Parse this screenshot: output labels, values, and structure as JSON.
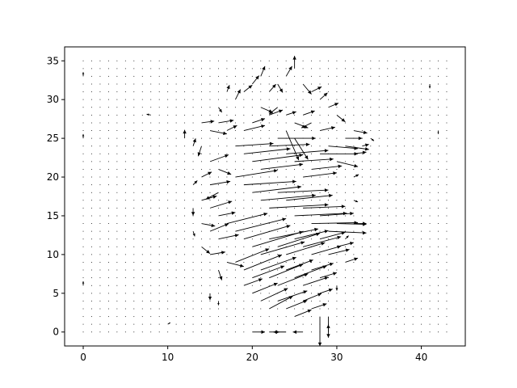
{
  "chart_data": {
    "type": "quiver",
    "title": "",
    "xlabel": "",
    "ylabel": "",
    "xlim": [
      -2.2,
      45.2
    ],
    "ylim": [
      -1.8,
      36.8
    ],
    "grid": false,
    "xticks": [
      0,
      10,
      20,
      30,
      40
    ],
    "yticks": [
      0,
      5,
      10,
      15,
      20,
      25,
      30,
      35
    ],
    "xtick_labels": [
      "0",
      "10",
      "20",
      "30",
      "40"
    ],
    "ytick_labels": [
      "0",
      "5",
      "10",
      "15",
      "20",
      "25",
      "30",
      "35"
    ],
    "grid_x_range": [
      0,
      43
    ],
    "grid_y_range": [
      0,
      35
    ],
    "color": "#000000",
    "vectors": [
      {
        "x": 0,
        "y": 33,
        "u": 0,
        "v": 0.5
      },
      {
        "x": 0,
        "y": 25,
        "u": 0,
        "v": 0.5
      },
      {
        "x": 0,
        "y": 6,
        "u": 0,
        "v": 0.5
      },
      {
        "x": 8,
        "y": 28,
        "u": -0.5,
        "v": 0.1
      },
      {
        "x": 14,
        "y": 27,
        "u": 1.5,
        "v": 0.2
      },
      {
        "x": 15,
        "y": 26,
        "u": 2.0,
        "v": -0.4
      },
      {
        "x": 16,
        "y": 27,
        "u": 1.8,
        "v": 0.3
      },
      {
        "x": 14,
        "y": 24,
        "u": -0.4,
        "v": -1.2
      },
      {
        "x": 15,
        "y": 22,
        "u": 2.2,
        "v": 0.8
      },
      {
        "x": 16,
        "y": 21,
        "u": 1.5,
        "v": -0.6
      },
      {
        "x": 14,
        "y": 20,
        "u": 1.2,
        "v": 0.6
      },
      {
        "x": 15,
        "y": 19,
        "u": 2.4,
        "v": 0.4
      },
      {
        "x": 16,
        "y": 18,
        "u": -1.5,
        "v": -0.8
      },
      {
        "x": 14,
        "y": 17,
        "u": 1.8,
        "v": 0.5
      },
      {
        "x": 15,
        "y": 16,
        "u": 2.6,
        "v": 0.8
      },
      {
        "x": 16,
        "y": 15,
        "u": 2.0,
        "v": 0.4
      },
      {
        "x": 14,
        "y": 14,
        "u": 1.6,
        "v": -0.3
      },
      {
        "x": 15,
        "y": 13,
        "u": 2.2,
        "v": 0.9
      },
      {
        "x": 16,
        "y": 12,
        "u": 2.4,
        "v": 0.5
      },
      {
        "x": 14,
        "y": 11,
        "u": 1.0,
        "v": -0.8
      },
      {
        "x": 15,
        "y": 10,
        "u": 1.8,
        "v": 0.3
      },
      {
        "x": 17,
        "y": 9,
        "u": 2.0,
        "v": -0.5
      },
      {
        "x": 16,
        "y": 8,
        "u": 0.4,
        "v": -1.2
      },
      {
        "x": 17,
        "y": 26,
        "u": 1.2,
        "v": 0.6
      },
      {
        "x": 18,
        "y": 24,
        "u": 4.5,
        "v": 0.3
      },
      {
        "x": 19,
        "y": 23,
        "u": 5.5,
        "v": 0.6
      },
      {
        "x": 20,
        "y": 22,
        "u": 6.0,
        "v": 0.8
      },
      {
        "x": 21,
        "y": 21,
        "u": 5.0,
        "v": 0.6
      },
      {
        "x": 22,
        "y": 24,
        "u": 4.8,
        "v": 0.2
      },
      {
        "x": 23,
        "y": 25,
        "u": 4.5,
        "v": 0.0
      },
      {
        "x": 24,
        "y": 23,
        "u": 5.0,
        "v": 0.4
      },
      {
        "x": 25,
        "y": 22,
        "u": 4.6,
        "v": 0.3
      },
      {
        "x": 26,
        "y": 20,
        "u": 4.0,
        "v": 0.5
      },
      {
        "x": 27,
        "y": 21,
        "u": 3.6,
        "v": 0.4
      },
      {
        "x": 28,
        "y": 23,
        "u": 4.5,
        "v": 0.0
      },
      {
        "x": 29,
        "y": 24,
        "u": 3.5,
        "v": -0.3
      },
      {
        "x": 30,
        "y": 22,
        "u": 2.5,
        "v": -0.6
      },
      {
        "x": 31,
        "y": 24,
        "u": 2.8,
        "v": -0.4
      },
      {
        "x": 32,
        "y": 23,
        "u": 1.5,
        "v": 0.2
      },
      {
        "x": 18,
        "y": 20,
        "u": 5.0,
        "v": 0.8
      },
      {
        "x": 19,
        "y": 19,
        "u": 6.2,
        "v": 0.4
      },
      {
        "x": 20,
        "y": 18,
        "u": 5.8,
        "v": 0.7
      },
      {
        "x": 21,
        "y": 17,
        "u": 6.5,
        "v": 0.6
      },
      {
        "x": 22,
        "y": 16,
        "u": 7.0,
        "v": 0.4
      },
      {
        "x": 23,
        "y": 18,
        "u": 6.0,
        "v": 0.3
      },
      {
        "x": 24,
        "y": 17,
        "u": 5.5,
        "v": 0.6
      },
      {
        "x": 25,
        "y": 15,
        "u": 6.2,
        "v": 0.3
      },
      {
        "x": 26,
        "y": 16,
        "u": 5.0,
        "v": 0.2
      },
      {
        "x": 27,
        "y": 14,
        "u": 5.5,
        "v": 0.1
      },
      {
        "x": 28,
        "y": 15,
        "u": 4.0,
        "v": 0.3
      },
      {
        "x": 29,
        "y": 13,
        "u": 4.5,
        "v": -0.2
      },
      {
        "x": 30,
        "y": 14,
        "u": 3.5,
        "v": -0.1
      },
      {
        "x": 17,
        "y": 14,
        "u": 4.8,
        "v": 1.2
      },
      {
        "x": 18,
        "y": 13,
        "u": 6.0,
        "v": 1.5
      },
      {
        "x": 19,
        "y": 12,
        "u": 5.5,
        "v": 1.6
      },
      {
        "x": 20,
        "y": 11,
        "u": 6.0,
        "v": 1.8
      },
      {
        "x": 21,
        "y": 10,
        "u": 5.2,
        "v": 1.5
      },
      {
        "x": 22,
        "y": 12,
        "u": 5.8,
        "v": 1.2
      },
      {
        "x": 23,
        "y": 11,
        "u": 5.0,
        "v": 1.6
      },
      {
        "x": 24,
        "y": 10,
        "u": 4.6,
        "v": 1.4
      },
      {
        "x": 25,
        "y": 12,
        "u": 4.0,
        "v": 1.0
      },
      {
        "x": 26,
        "y": 11,
        "u": 4.5,
        "v": 1.2
      },
      {
        "x": 27,
        "y": 10,
        "u": 3.5,
        "v": 1.0
      },
      {
        "x": 28,
        "y": 12,
        "u": 3.0,
        "v": 0.8
      },
      {
        "x": 29,
        "y": 10,
        "u": 2.5,
        "v": 0.6
      },
      {
        "x": 30,
        "y": 11,
        "u": 2.0,
        "v": 0.5
      },
      {
        "x": 31,
        "y": 9,
        "u": 1.5,
        "v": 0.5
      },
      {
        "x": 18,
        "y": 9,
        "u": 4.0,
        "v": 1.6
      },
      {
        "x": 19,
        "y": 8,
        "u": 4.5,
        "v": 1.8
      },
      {
        "x": 20,
        "y": 7,
        "u": 3.8,
        "v": 1.4
      },
      {
        "x": 21,
        "y": 8,
        "u": 4.2,
        "v": 1.5
      },
      {
        "x": 22,
        "y": 7,
        "u": 4.0,
        "v": 1.6
      },
      {
        "x": 23,
        "y": 6,
        "u": 3.6,
        "v": 1.4
      },
      {
        "x": 24,
        "y": 8,
        "u": 3.2,
        "v": 1.2
      },
      {
        "x": 25,
        "y": 7,
        "u": 3.8,
        "v": 1.4
      },
      {
        "x": 26,
        "y": 6,
        "u": 3.0,
        "v": 1.0
      },
      {
        "x": 27,
        "y": 8,
        "u": 2.6,
        "v": 0.8
      },
      {
        "x": 28,
        "y": 7,
        "u": 2.0,
        "v": 0.6
      },
      {
        "x": 19,
        "y": 6,
        "u": 2.2,
        "v": 0.8
      },
      {
        "x": 20,
        "y": 5,
        "u": 3.0,
        "v": 1.2
      },
      {
        "x": 21,
        "y": 4,
        "u": 3.2,
        "v": 1.5
      },
      {
        "x": 22,
        "y": 3,
        "u": 2.8,
        "v": 1.5
      },
      {
        "x": 23,
        "y": 4,
        "u": 3.5,
        "v": 1.2
      },
      {
        "x": 24,
        "y": 3,
        "u": 2.5,
        "v": 1.0
      },
      {
        "x": 25,
        "y": 2,
        "u": 2.0,
        "v": 0.8
      },
      {
        "x": 26,
        "y": 4,
        "u": 2.2,
        "v": 0.9
      },
      {
        "x": 27,
        "y": 3,
        "u": 1.8,
        "v": 0.6
      },
      {
        "x": 28,
        "y": 5,
        "u": 1.5,
        "v": 0.5
      },
      {
        "x": 20,
        "y": 0,
        "u": 1.5,
        "v": 0.0
      },
      {
        "x": 22,
        "y": 0,
        "u": 1.2,
        "v": 0.0
      },
      {
        "x": 24,
        "y": 0,
        "u": -1.5,
        "v": 0.0
      },
      {
        "x": 26,
        "y": 0,
        "u": -1.2,
        "v": 0.0
      },
      {
        "x": 28,
        "y": 2,
        "u": 0.0,
        "v": -3.5
      },
      {
        "x": 29,
        "y": 2,
        "u": 0.0,
        "v": -2.5
      },
      {
        "x": 18,
        "y": 30,
        "u": 0.6,
        "v": 1.2
      },
      {
        "x": 19,
        "y": 31,
        "u": 1.0,
        "v": 0.8
      },
      {
        "x": 20,
        "y": 32,
        "u": 0.8,
        "v": 1.0
      },
      {
        "x": 21,
        "y": 33,
        "u": 0.5,
        "v": 1.2
      },
      {
        "x": 22,
        "y": 31,
        "u": 0.8,
        "v": 0.9
      },
      {
        "x": 23,
        "y": 32,
        "u": 0.6,
        "v": -1.0
      },
      {
        "x": 24,
        "y": 33,
        "u": 0.7,
        "v": 1.2
      },
      {
        "x": 25,
        "y": 34,
        "u": 0.0,
        "v": 1.5
      },
      {
        "x": 26,
        "y": 32,
        "u": 1.0,
        "v": -1.2
      },
      {
        "x": 27,
        "y": 31,
        "u": 1.2,
        "v": 0.6
      },
      {
        "x": 28,
        "y": 30,
        "u": 0.9,
        "v": 0.8
      },
      {
        "x": 29,
        "y": 29,
        "u": 1.2,
        "v": 0.5
      },
      {
        "x": 30,
        "y": 28,
        "u": 1.0,
        "v": -0.8
      },
      {
        "x": 21,
        "y": 29,
        "u": 1.4,
        "v": -0.6
      },
      {
        "x": 22,
        "y": 28,
        "u": 1.6,
        "v": 0.6
      },
      {
        "x": 23,
        "y": 29,
        "u": -1.0,
        "v": -0.8
      },
      {
        "x": 24,
        "y": 28,
        "u": 1.2,
        "v": 0.4
      },
      {
        "x": 25,
        "y": 27,
        "u": 1.6,
        "v": -0.6
      },
      {
        "x": 26,
        "y": 28,
        "u": 1.4,
        "v": 0.5
      },
      {
        "x": 27,
        "y": 27,
        "u": -1.2,
        "v": -0.6
      },
      {
        "x": 28,
        "y": 26,
        "u": 1.8,
        "v": 0.4
      },
      {
        "x": 20,
        "y": 27,
        "u": 1.5,
        "v": 0.5
      },
      {
        "x": 19,
        "y": 26,
        "u": 2.5,
        "v": 0.6
      },
      {
        "x": 24,
        "y": 26,
        "u": 1.5,
        "v": -3.5
      },
      {
        "x": 25,
        "y": 25,
        "u": 1.6,
        "v": -2.5
      },
      {
        "x": 31,
        "y": 25,
        "u": 2.0,
        "v": 0.0
      },
      {
        "x": 32,
        "y": 26,
        "u": 1.6,
        "v": -0.3
      },
      {
        "x": 33,
        "y": 24,
        "u": 0.8,
        "v": 0.2
      },
      {
        "x": 12,
        "y": 25,
        "u": 0.0,
        "v": 1.0
      },
      {
        "x": 13,
        "y": 24,
        "u": 0.3,
        "v": 0.9
      },
      {
        "x": 13,
        "y": 19,
        "u": 0.5,
        "v": 0.5
      },
      {
        "x": 13,
        "y": 16,
        "u": 0.0,
        "v": -0.9
      },
      {
        "x": 13,
        "y": 13,
        "u": 0.2,
        "v": -0.6
      },
      {
        "x": 16,
        "y": 29,
        "u": 0.4,
        "v": -0.6
      },
      {
        "x": 17,
        "y": 31,
        "u": 0.3,
        "v": 0.8
      },
      {
        "x": 34,
        "y": 25,
        "u": 0.4,
        "v": -0.3
      },
      {
        "x": 32,
        "y": 20,
        "u": 0.6,
        "v": 0.3
      },
      {
        "x": 32,
        "y": 17,
        "u": 0.5,
        "v": -0.2
      },
      {
        "x": 32,
        "y": 14,
        "u": 1.5,
        "v": 0.0
      },
      {
        "x": 31,
        "y": 12,
        "u": 0.4,
        "v": 0.4
      },
      {
        "x": 30,
        "y": 6,
        "u": 0.0,
        "v": -0.6
      },
      {
        "x": 29,
        "y": 0,
        "u": 0.0,
        "v": 0.9
      },
      {
        "x": 15,
        "y": 5,
        "u": 0.0,
        "v": -0.8
      },
      {
        "x": 16,
        "y": 4,
        "u": 0.0,
        "v": -0.5
      },
      {
        "x": 41,
        "y": 32,
        "u": 0.0,
        "v": -0.5
      },
      {
        "x": 42,
        "y": 26,
        "u": 0.0,
        "v": -0.4
      },
      {
        "x": 10,
        "y": 1,
        "u": 0.3,
        "v": 0.2
      }
    ]
  }
}
